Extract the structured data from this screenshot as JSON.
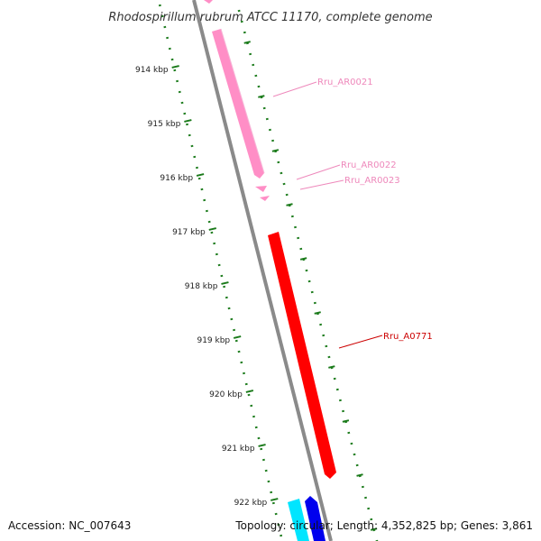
{
  "title": "Rhodospirillum rubrum ATCC 11170, complete genome",
  "accession": "Accession: NC_007643",
  "summary": "Topology: circular; Length: 4,352,825 bp; Genes: 3,861",
  "colors": {
    "backbone": "#8a8a8a",
    "ticks": "#1a7a1a",
    "rna": "#ff8ec6",
    "rna_label": "#ee88bb",
    "cds_red": "#ff0000",
    "cds_red_label": "#cc0000",
    "cyan": "#00e5ff",
    "blue": "#0000ee"
  },
  "kbp_labels": [
    "914 kbp",
    "915 kbp",
    "916 kbp",
    "917 kbp",
    "918 kbp",
    "919 kbp",
    "920 kbp",
    "921 kbp",
    "922 kbp"
  ],
  "genes": [
    {
      "label": "Rru_AR0021"
    },
    {
      "label": "Rru_AR0022"
    },
    {
      "label": "Rru_AR0023"
    },
    {
      "label": "Rru_A0771"
    }
  ]
}
